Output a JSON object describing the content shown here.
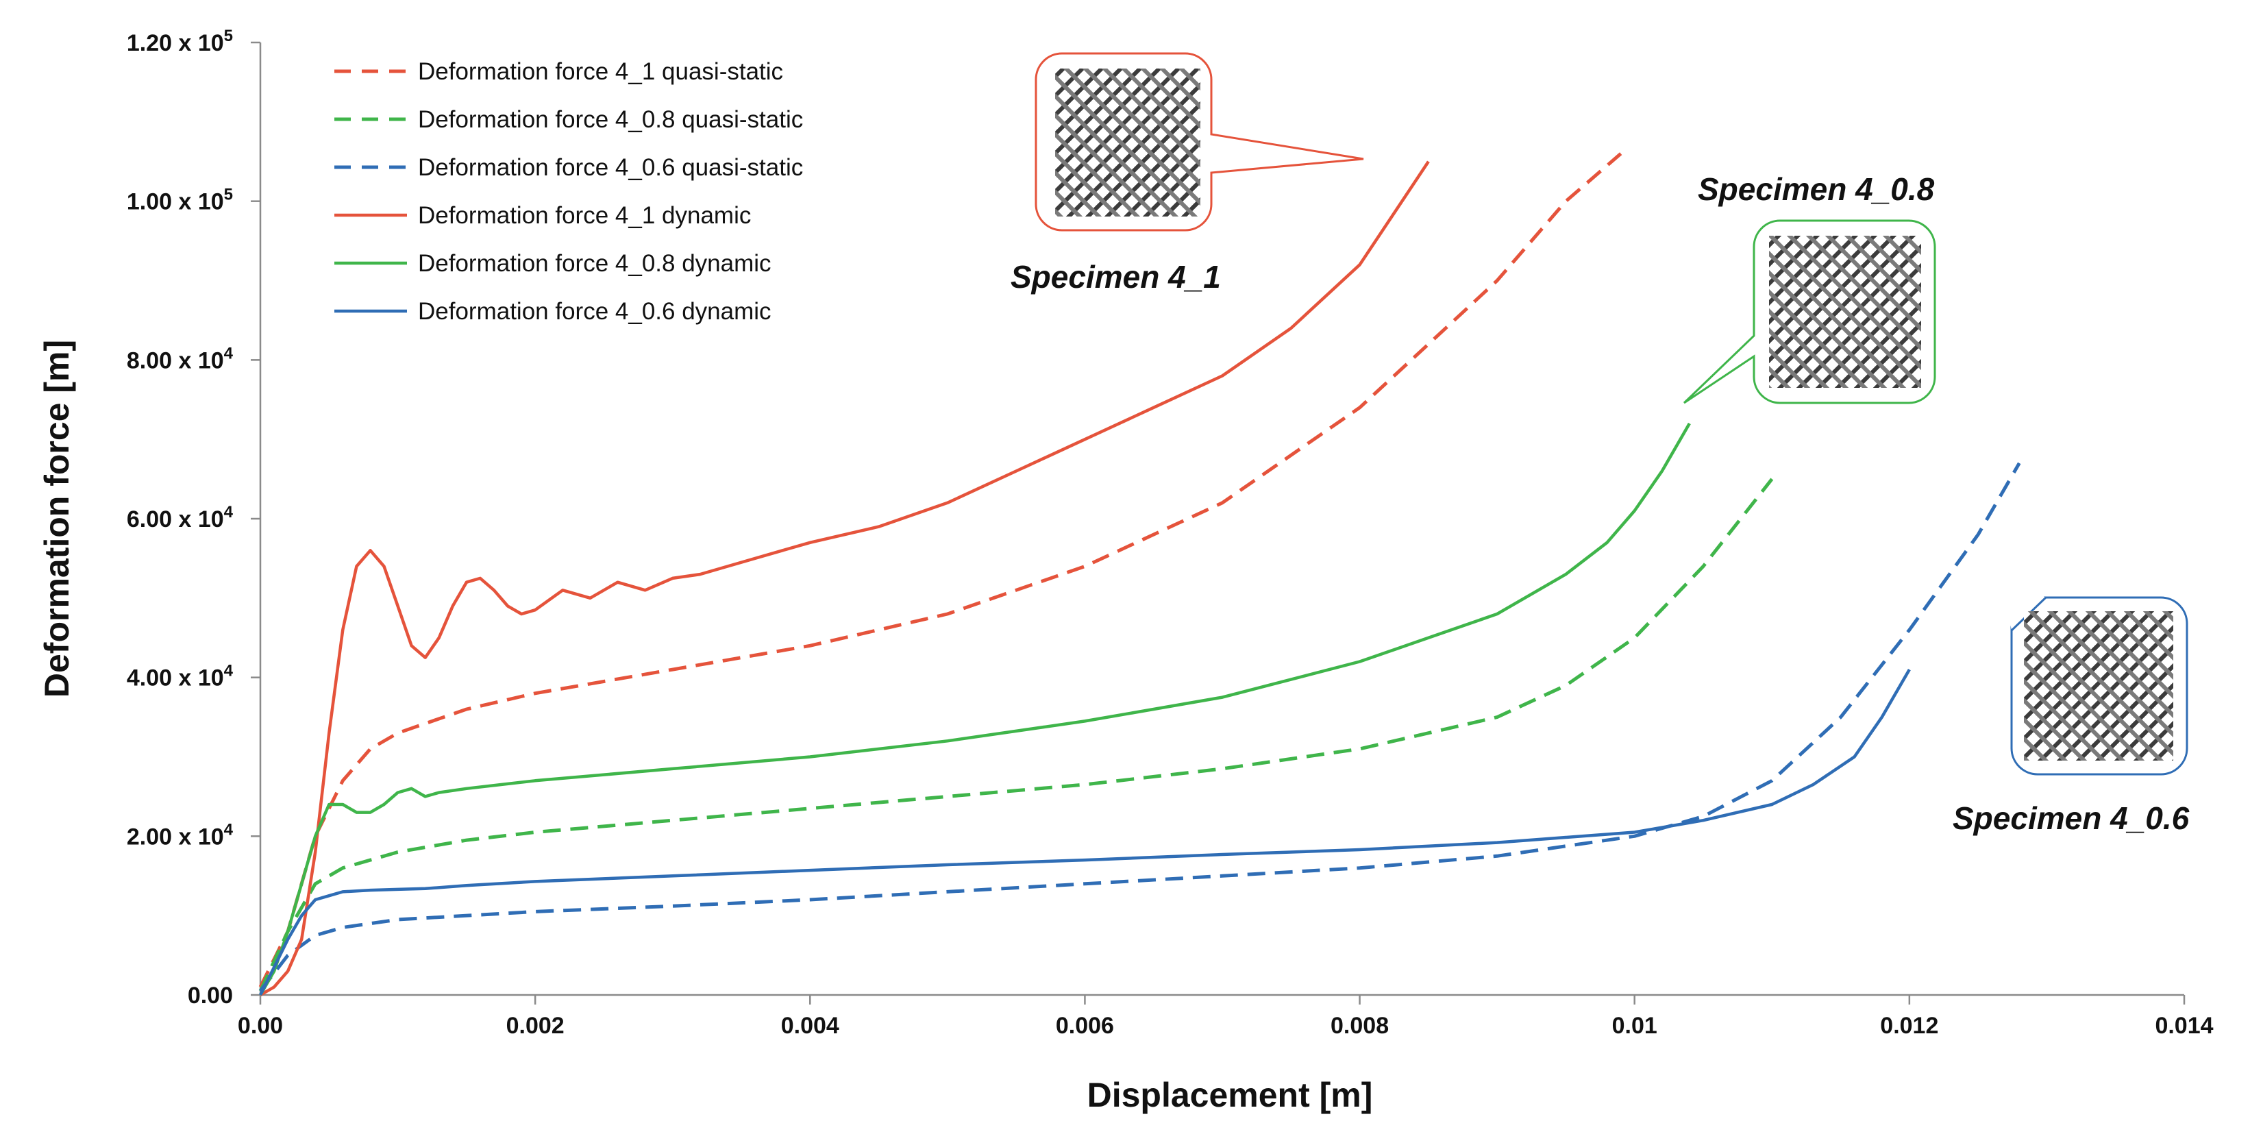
{
  "chart_data": {
    "type": "line",
    "xlabel": "Displacement [m]",
    "ylabel": "Deformation force [m]",
    "xlim": [
      0,
      0.014
    ],
    "ylim": [
      0,
      120000
    ],
    "x_ticks": [
      {
        "value": 0,
        "label": "0.00"
      },
      {
        "value": 0.002,
        "label": "0.002"
      },
      {
        "value": 0.004,
        "label": "0.004"
      },
      {
        "value": 0.006,
        "label": "0.006"
      },
      {
        "value": 0.008,
        "label": "0.008"
      },
      {
        "value": 0.01,
        "label": "0.01"
      },
      {
        "value": 0.012,
        "label": "0.012"
      },
      {
        "value": 0.014,
        "label": "0.014"
      }
    ],
    "y_ticks": [
      {
        "value": 0,
        "mantissa": "0.00",
        "exp": ""
      },
      {
        "value": 20000,
        "mantissa": "2.00 x 10",
        "exp": "4"
      },
      {
        "value": 40000,
        "mantissa": "4.00 x 10",
        "exp": "4"
      },
      {
        "value": 60000,
        "mantissa": "6.00 x 10",
        "exp": "4"
      },
      {
        "value": 80000,
        "mantissa": "8.00 x 10",
        "exp": "4"
      },
      {
        "value": 100000,
        "mantissa": "1.00 x 10",
        "exp": "5"
      },
      {
        "value": 120000,
        "mantissa": "1.20 x 10",
        "exp": "5"
      }
    ],
    "legend_position": "top-left",
    "series": [
      {
        "name": "Deformation force 4_1 quasi-static",
        "color": "#e5533b",
        "style": "dashed",
        "x": [
          0,
          0.0002,
          0.0004,
          0.0006,
          0.0008,
          0.001,
          0.0015,
          0.002,
          0.003,
          0.004,
          0.005,
          0.006,
          0.007,
          0.0075,
          0.008,
          0.0085,
          0.009,
          0.0095,
          0.0099
        ],
        "y": [
          1000,
          8000,
          20000,
          27000,
          31000,
          33000,
          36000,
          38000,
          41000,
          44000,
          48000,
          54000,
          62000,
          68000,
          74000,
          82000,
          90000,
          100000,
          106000
        ]
      },
      {
        "name": "Deformation force 4_0.8 quasi-static",
        "color": "#3fb54a",
        "style": "dashed",
        "x": [
          0,
          0.0002,
          0.0004,
          0.0006,
          0.001,
          0.0015,
          0.002,
          0.003,
          0.004,
          0.005,
          0.006,
          0.007,
          0.008,
          0.009,
          0.0095,
          0.01,
          0.0105,
          0.011
        ],
        "y": [
          500,
          8000,
          14000,
          16000,
          18000,
          19500,
          20500,
          22000,
          23500,
          25000,
          26500,
          28500,
          31000,
          35000,
          39000,
          45000,
          54000,
          65000
        ]
      },
      {
        "name": "Deformation force 4_0.6 quasi-static",
        "color": "#2f6db5",
        "style": "dashed",
        "x": [
          0,
          0.0002,
          0.0004,
          0.0006,
          0.001,
          0.002,
          0.003,
          0.004,
          0.005,
          0.006,
          0.007,
          0.008,
          0.009,
          0.01,
          0.0105,
          0.011,
          0.0115,
          0.012,
          0.0125,
          0.0128
        ],
        "y": [
          500,
          5000,
          7500,
          8500,
          9500,
          10500,
          11200,
          12000,
          13000,
          14000,
          15000,
          16000,
          17500,
          20000,
          22500,
          27000,
          35000,
          46000,
          58000,
          67000
        ]
      },
      {
        "name": "Deformation force 4_1 dynamic",
        "color": "#e5533b",
        "style": "solid",
        "x": [
          0,
          0.0001,
          0.0002,
          0.0003,
          0.0004,
          0.0005,
          0.0006,
          0.0007,
          0.0008,
          0.0009,
          0.001,
          0.0011,
          0.0012,
          0.0013,
          0.0014,
          0.0015,
          0.0016,
          0.0017,
          0.0018,
          0.0019,
          0.002,
          0.0022,
          0.0024,
          0.0026,
          0.0028,
          0.003,
          0.0032,
          0.0034,
          0.0036,
          0.0038,
          0.004,
          0.0045,
          0.005,
          0.0055,
          0.006,
          0.0065,
          0.007,
          0.0075,
          0.008,
          0.0085
        ],
        "y": [
          0,
          1000,
          3000,
          7000,
          18000,
          33000,
          46000,
          54000,
          56000,
          54000,
          49000,
          44000,
          42500,
          45000,
          49000,
          52000,
          52500,
          51000,
          49000,
          48000,
          48500,
          51000,
          50000,
          52000,
          51000,
          52500,
          53000,
          54000,
          55000,
          56000,
          57000,
          59000,
          62000,
          66000,
          70000,
          74000,
          78000,
          84000,
          92000,
          105000
        ]
      },
      {
        "name": "Deformation force 4_0.8 dynamic",
        "color": "#3fb54a",
        "style": "solid",
        "x": [
          0,
          0.0001,
          0.0002,
          0.0003,
          0.0004,
          0.0005,
          0.0006,
          0.0007,
          0.0008,
          0.0009,
          0.001,
          0.0011,
          0.0012,
          0.0013,
          0.0015,
          0.002,
          0.003,
          0.004,
          0.005,
          0.006,
          0.007,
          0.008,
          0.0085,
          0.009,
          0.0095,
          0.0098,
          0.01,
          0.0102,
          0.0104
        ],
        "y": [
          0,
          3000,
          8000,
          14000,
          20000,
          24000,
          24000,
          23000,
          23000,
          24000,
          25500,
          26000,
          25000,
          25500,
          26000,
          27000,
          28500,
          30000,
          32000,
          34500,
          37500,
          42000,
          45000,
          48000,
          53000,
          57000,
          61000,
          66000,
          72000
        ]
      },
      {
        "name": "Deformation force 4_0.6 dynamic",
        "color": "#2f6db5",
        "style": "solid",
        "x": [
          0,
          0.0001,
          0.0002,
          0.0003,
          0.0004,
          0.0005,
          0.0006,
          0.0008,
          0.001,
          0.0012,
          0.0015,
          0.002,
          0.003,
          0.004,
          0.005,
          0.006,
          0.007,
          0.008,
          0.009,
          0.01,
          0.0105,
          0.011,
          0.0113,
          0.0116,
          0.0118,
          0.012
        ],
        "y": [
          0,
          3500,
          7000,
          10000,
          12000,
          12500,
          13000,
          13200,
          13300,
          13400,
          13800,
          14300,
          15000,
          15700,
          16400,
          17000,
          17700,
          18300,
          19200,
          20500,
          22000,
          24000,
          26500,
          30000,
          35000,
          41000
        ]
      }
    ],
    "annotations": [
      {
        "text": "Specimen 4_1",
        "color": "#e5533b"
      },
      {
        "text": "Specimen 4_0.8",
        "color": "#3fb54a"
      },
      {
        "text": "Specimen 4_0.6",
        "color": "#2f6db5"
      }
    ]
  }
}
